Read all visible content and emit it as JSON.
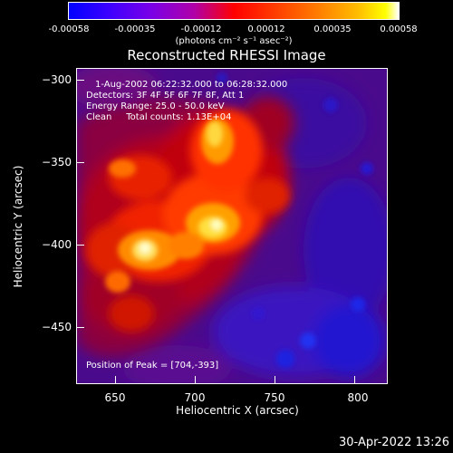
{
  "colorbar": {
    "tick_labels": [
      "-0.00058",
      "-0.00035",
      "-0.00012",
      "0.00012",
      "0.00035",
      "0.00058"
    ],
    "units_label": "(photons cm⁻² s⁻¹ asec⁻²)",
    "colormap": [
      "#0000ff",
      "#7a00e6",
      "#ff0000",
      "#ff7a00",
      "#ffff00",
      "#ffffff"
    ]
  },
  "title": "Reconstructed RHESSI Image",
  "annotations": {
    "time_range": "1-Aug-2002 06:22:32.000 to 06:28:32.000",
    "detectors": "Detectors: 3F 4F 5F 6F 7F 8F, Att 1",
    "energy_range": "Energy Range: 25.0 - 50.0 keV",
    "clean_counts": "Clean     Total counts: 1.13E+04",
    "peak_position": "Position of Peak = [704,-393]"
  },
  "axes": {
    "xlabel": "Heliocentric X (arcsec)",
    "ylabel": "Heliocentric Y (arcsec)",
    "x_tick_labels": [
      "650",
      "700",
      "750",
      "800"
    ],
    "y_tick_labels": [
      "−300",
      "−350",
      "−400",
      "−450"
    ],
    "xlim": [
      621,
      815
    ],
    "ylim": [
      -485,
      -290
    ]
  },
  "footer": {
    "datestamp": "30-Apr-2022 13:26"
  }
}
